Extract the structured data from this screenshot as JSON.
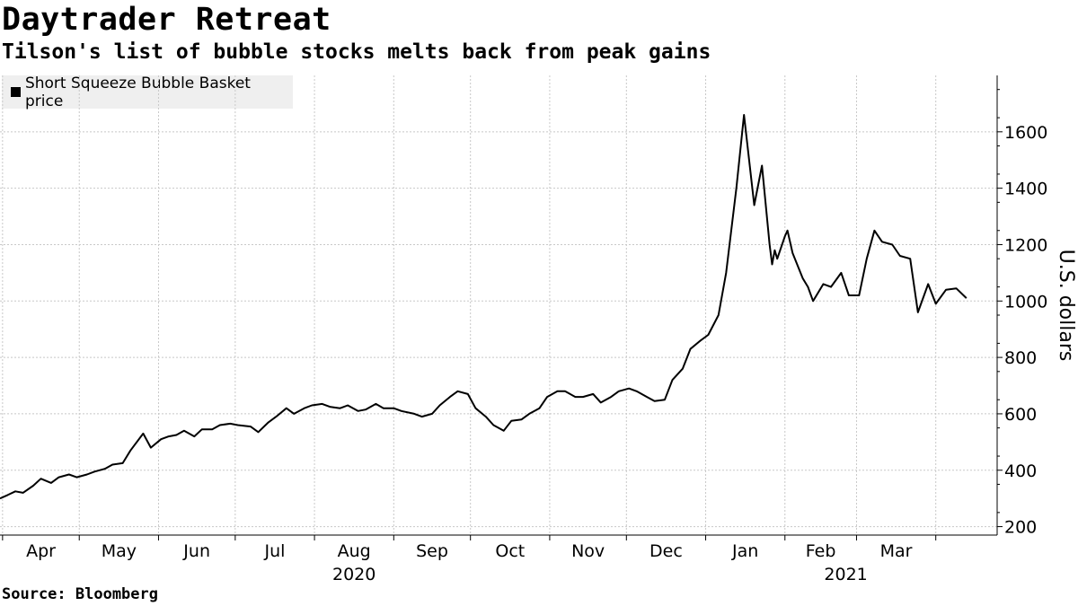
{
  "chart_data": {
    "type": "line",
    "title": "Daytrader Retreat",
    "subtitle": "Tilson's list of bubble stocks melts back from peak gains",
    "ylabel": "U.S. dollars",
    "source": "Source: Bloomberg",
    "legend": {
      "placement": "top-left"
    },
    "grid": true,
    "ylim": [
      170,
      1800
    ],
    "y_ticks": [
      200,
      400,
      600,
      800,
      1000,
      1200,
      1400,
      1600
    ],
    "month_labels": [
      "Apr",
      "May",
      "Jun",
      "Jul",
      "Aug",
      "Sep",
      "Oct",
      "Nov",
      "Dec",
      "Jan",
      "Feb",
      "Mar"
    ],
    "year_labels": [
      {
        "year": "2020",
        "under": "Aug"
      },
      {
        "year": "2021",
        "under": "Feb"
      }
    ],
    "series": [
      {
        "name": "Short Squeeze Bubble Basket price",
        "color": "#000000",
        "x": [
          "2020-03-31",
          "2020-04-03",
          "2020-04-06",
          "2020-04-09",
          "2020-04-13",
          "2020-04-16",
          "2020-04-20",
          "2020-04-23",
          "2020-04-27",
          "2020-04-30",
          "2020-05-04",
          "2020-05-07",
          "2020-05-11",
          "2020-05-14",
          "2020-05-18",
          "2020-05-21",
          "2020-05-26",
          "2020-05-29",
          "2020-06-02",
          "2020-06-05",
          "2020-06-08",
          "2020-06-11",
          "2020-06-15",
          "2020-06-18",
          "2020-06-22",
          "2020-06-25",
          "2020-06-29",
          "2020-07-02",
          "2020-07-07",
          "2020-07-10",
          "2020-07-14",
          "2020-07-17",
          "2020-07-21",
          "2020-07-24",
          "2020-07-28",
          "2020-07-31",
          "2020-08-04",
          "2020-08-07",
          "2020-08-11",
          "2020-08-14",
          "2020-08-18",
          "2020-08-21",
          "2020-08-25",
          "2020-08-28",
          "2020-09-01",
          "2020-09-04",
          "2020-09-09",
          "2020-09-12",
          "2020-09-16",
          "2020-09-19",
          "2020-09-23",
          "2020-09-26",
          "2020-09-30",
          "2020-10-03",
          "2020-10-07",
          "2020-10-10",
          "2020-10-14",
          "2020-10-17",
          "2020-10-21",
          "2020-10-24",
          "2020-10-28",
          "2020-10-31",
          "2020-11-04",
          "2020-11-07",
          "2020-11-11",
          "2020-11-14",
          "2020-11-18",
          "2020-11-21",
          "2020-11-25",
          "2020-11-28",
          "2020-12-02",
          "2020-12-05",
          "2020-12-09",
          "2020-12-12",
          "2020-12-16",
          "2020-12-19",
          "2020-12-23",
          "2020-12-26",
          "2020-12-30",
          "2021-01-02",
          "2021-01-06",
          "2021-01-09",
          "2021-01-13",
          "2021-01-16",
          "2021-01-20",
          "2021-01-23",
          "2021-01-26",
          "2021-01-27",
          "2021-01-28",
          "2021-01-29",
          "2021-02-01",
          "2021-02-02",
          "2021-02-04",
          "2021-02-08",
          "2021-02-10",
          "2021-02-12",
          "2021-02-16",
          "2021-02-19",
          "2021-02-23",
          "2021-02-26",
          "2021-03-02",
          "2021-03-05",
          "2021-03-08",
          "2021-03-11",
          "2021-03-15",
          "2021-03-18",
          "2021-03-22",
          "2021-03-25",
          "2021-03-29",
          "2021-04-01",
          "2021-04-05",
          "2021-04-09",
          "2021-04-13"
        ],
        "values": [
          300,
          312,
          325,
          320,
          345,
          370,
          355,
          375,
          385,
          375,
          385,
          395,
          405,
          420,
          425,
          470,
          530,
          480,
          510,
          520,
          525,
          540,
          520,
          545,
          545,
          560,
          565,
          560,
          555,
          535,
          570,
          590,
          620,
          600,
          620,
          630,
          635,
          625,
          620,
          630,
          610,
          615,
          635,
          620,
          620,
          610,
          600,
          590,
          600,
          630,
          660,
          680,
          670,
          620,
          590,
          560,
          540,
          575,
          580,
          600,
          620,
          660,
          680,
          680,
          660,
          660,
          670,
          640,
          660,
          680,
          690,
          680,
          660,
          645,
          650,
          720,
          760,
          830,
          860,
          880,
          950,
          1100,
          1400,
          1660,
          1340,
          1480,
          1200,
          1130,
          1180,
          1150,
          1230,
          1250,
          1170,
          1080,
          1050,
          1000,
          1060,
          1050,
          1100,
          1020,
          1020,
          1150,
          1250,
          1210,
          1200,
          1160,
          1150,
          960,
          1060,
          990,
          1040,
          1045,
          1010
        ]
      }
    ]
  }
}
